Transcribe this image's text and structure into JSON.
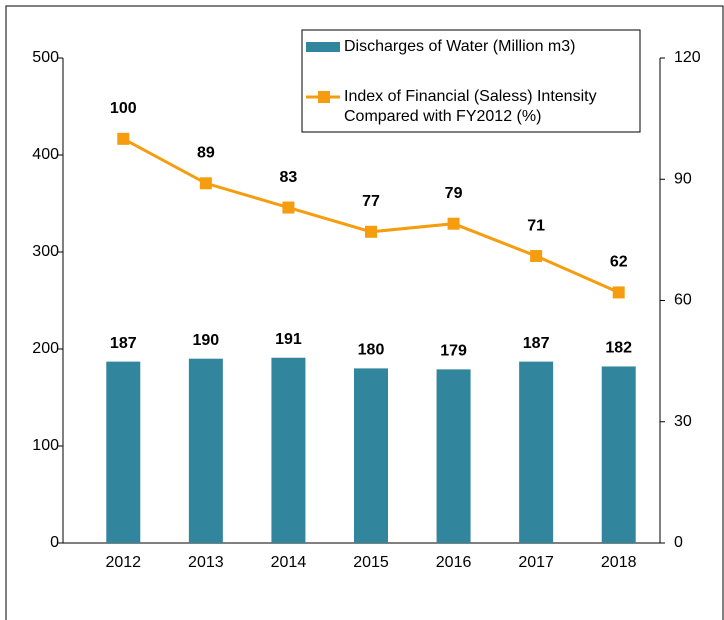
{
  "chart_data": {
    "type": "bar_line",
    "categories": [
      "2012",
      "2013",
      "2014",
      "2015",
      "2016",
      "2017",
      "2018"
    ],
    "series": [
      {
        "name": "Discharges of Water (Million m3)",
        "type": "bar",
        "color": "#31859c",
        "values": [
          187,
          190,
          191,
          180,
          179,
          187,
          182
        ]
      },
      {
        "name": "Index of Financial (Saless) Intensity Compared with FY2012 (%)",
        "type": "line",
        "axis": "y2",
        "color": "#f59d0e",
        "values": [
          100,
          89,
          83,
          77,
          79,
          71,
          62
        ]
      }
    ],
    "ylim": [
      0,
      500
    ],
    "yticks": [
      0,
      100,
      200,
      300,
      400,
      500
    ],
    "y2lim": [
      0,
      120
    ],
    "y2ticks": [
      0,
      30,
      60,
      90,
      120
    ],
    "legend": "top-right"
  }
}
